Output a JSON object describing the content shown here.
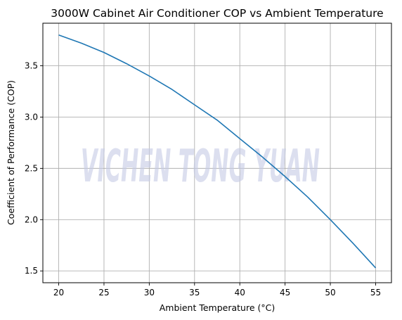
{
  "chart_data": {
    "type": "line",
    "title": "3000W Cabinet Air Conditioner COP vs Ambient Temperature",
    "xlabel": "Ambient Temperature (°C)",
    "ylabel": "Coefficient of Performance (COP)",
    "xlim": [
      18.25,
      56.75
    ],
    "ylim": [
      1.385,
      3.915
    ],
    "xticks": [
      20,
      25,
      30,
      35,
      40,
      45,
      50,
      55
    ],
    "yticks": [
      1.5,
      2.0,
      2.5,
      3.0,
      3.5
    ],
    "ytick_labels": [
      "1.5",
      "2.0",
      "2.5",
      "3.0",
      "3.5"
    ],
    "grid": true,
    "watermark": "VICHEN TONG YUAN",
    "series": [
      {
        "color": "#1f77b4",
        "x": [
          20,
          22.5,
          25,
          27.5,
          30,
          32.5,
          35,
          37.5,
          40,
          42.5,
          45,
          47.5,
          50,
          52.5,
          55
        ],
        "y": [
          3.8,
          3.72,
          3.63,
          3.52,
          3.4,
          3.27,
          3.12,
          2.97,
          2.79,
          2.61,
          2.42,
          2.22,
          2.0,
          1.77,
          1.53
        ]
      }
    ]
  }
}
